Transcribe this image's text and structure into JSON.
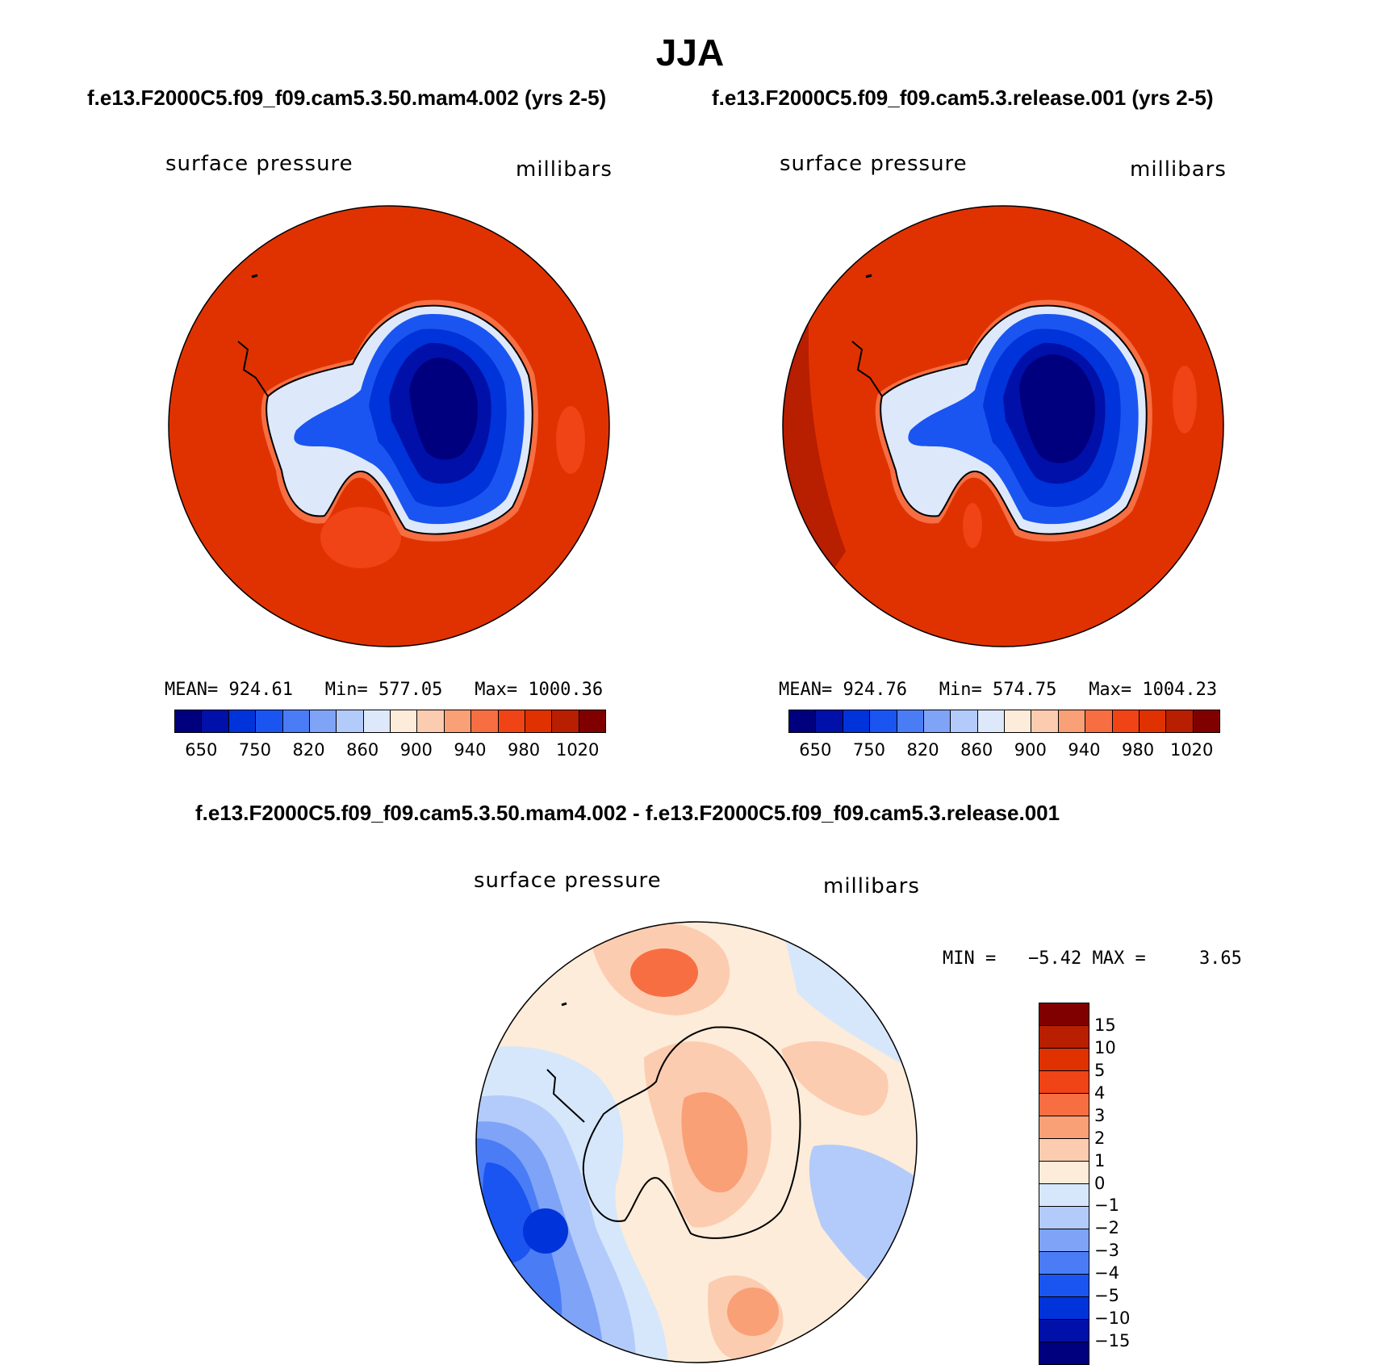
{
  "chart_data": [
    {
      "type": "heatmap",
      "title": "f.e13.F2000C5.f09_f09.cam5.3.50.mam4.002 (yrs 2-5)",
      "variable": "surface pressure",
      "units": "millibars",
      "stats": {
        "mean_label": "MEAN=",
        "mean": "924.61",
        "min_label": "Min=",
        "min": "577.05",
        "max_label": "Max=",
        "max": "1000.36"
      },
      "colorbar_ticks": [
        "650",
        "750",
        "820",
        "860",
        "900",
        "940",
        "980",
        "1020"
      ]
    },
    {
      "type": "heatmap",
      "title": "f.e13.F2000C5.f09_f09.cam5.3.release.001 (yrs 2-5)",
      "variable": "surface pressure",
      "units": "millibars",
      "stats": {
        "mean_label": "MEAN=",
        "mean": "924.76",
        "min_label": "Min=",
        "min": "574.75",
        "max_label": "Max=",
        "max": "1004.23"
      },
      "colorbar_ticks": [
        "650",
        "750",
        "820",
        "860",
        "900",
        "940",
        "980",
        "1020"
      ]
    },
    {
      "type": "heatmap",
      "title": "f.e13.F2000C5.f09_f09.cam5.3.50.mam4.002 - f.e13.F2000C5.f09_f09.cam5.3.release.001",
      "variable": "surface pressure",
      "units": "millibars",
      "stats": {
        "min_label": "MIN =",
        "min": "−5.42",
        "max_label": "MAX =",
        "max": "3.65"
      },
      "colorbar_ticks": [
        "15",
        "10",
        "5",
        "4",
        "3",
        "2",
        "1",
        "0",
        "−1",
        "−2",
        "−3",
        "−4",
        "−5",
        "−10",
        "−15"
      ]
    }
  ],
  "figure_title": "JJA",
  "colors": {
    "abs_scale": [
      "#00007f",
      "#0010a8",
      "#0033d9",
      "#1a55f2",
      "#4a7df5",
      "#7fa3f7",
      "#b3cbfa",
      "#dde9fb",
      "#fdecd9",
      "#fcccb0",
      "#f9a077",
      "#f66e42",
      "#f04316",
      "#e03200",
      "#b81e00",
      "#800000"
    ],
    "diff_scale": [
      "#800000",
      "#b81e00",
      "#e03200",
      "#f04316",
      "#f66e42",
      "#f9a077",
      "#fcccb0",
      "#fdecd9",
      "#d6e7fb",
      "#b3cbfa",
      "#7fa3f7",
      "#4a7df5",
      "#1a55f2",
      "#0033d9",
      "#0010a8",
      "#00007f"
    ]
  }
}
